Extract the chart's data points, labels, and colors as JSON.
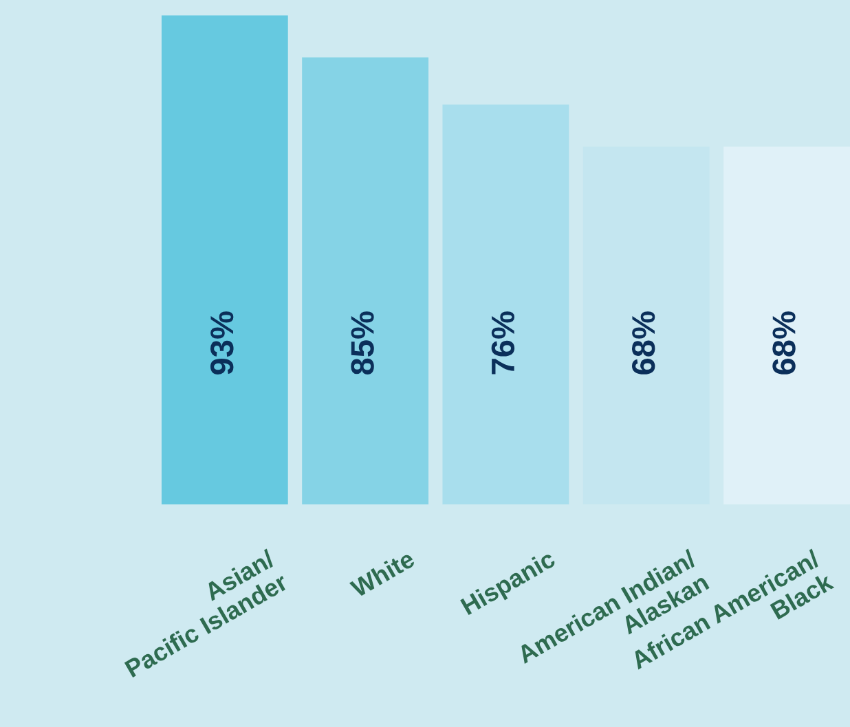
{
  "chart_data": {
    "type": "bar",
    "categories": [
      "Asian/\nPacific Islander",
      "White",
      "Hispanic",
      "American Indian/\nAlaskan",
      "African American/\nBlack"
    ],
    "values": [
      93,
      85,
      76,
      68,
      68
    ],
    "colors": [
      "#66c9e0",
      "#85d3e6",
      "#a8deed",
      "#c4e6f0",
      "#e0f1f8"
    ],
    "value_labels": [
      "93%",
      "85%",
      "76%",
      "68%",
      "68%"
    ],
    "ylim": [
      0,
      93
    ],
    "legend": false
  }
}
